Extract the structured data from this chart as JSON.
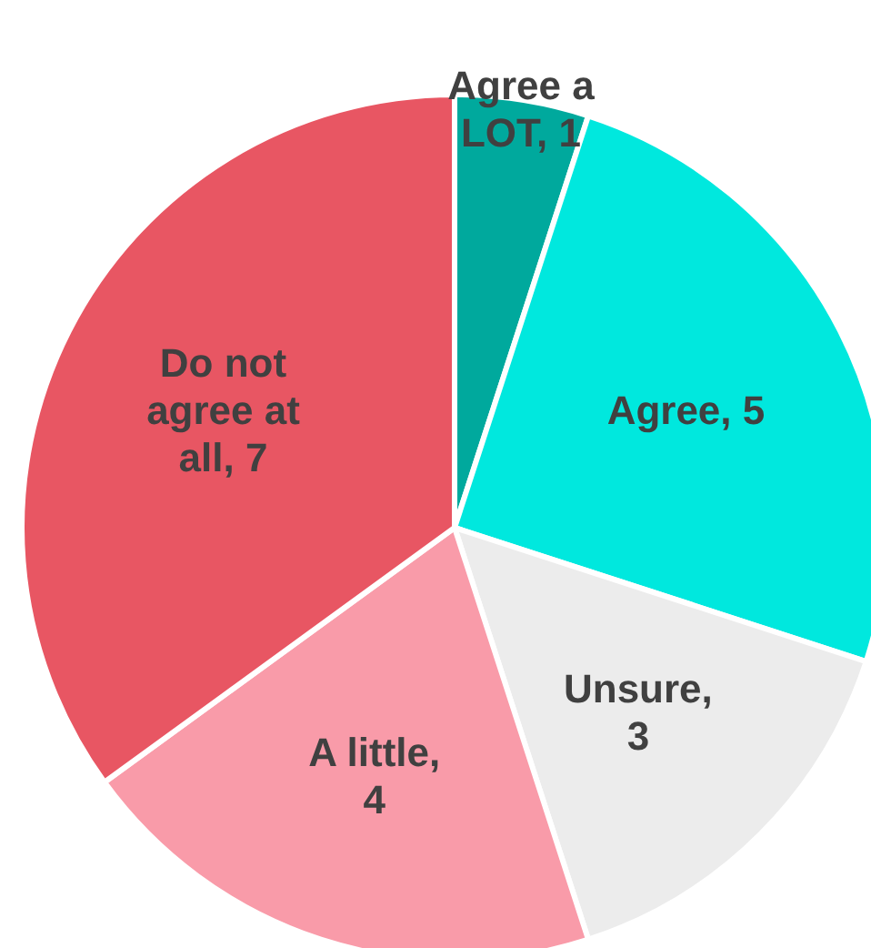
{
  "chart_data": {
    "type": "pie",
    "categories": [
      "Agree a LOT",
      "Agree",
      "Unsure",
      "A little",
      "Do not agree at all"
    ],
    "values": [
      1,
      5,
      3,
      4,
      7
    ],
    "value_labels": [
      ", 1",
      ", 5",
      ", 3",
      ", 4",
      ", 7"
    ],
    "colors": [
      "#00a99d",
      "#00e8de",
      "#ececec",
      "#f99ba9",
      "#e85663"
    ],
    "legend": false
  }
}
